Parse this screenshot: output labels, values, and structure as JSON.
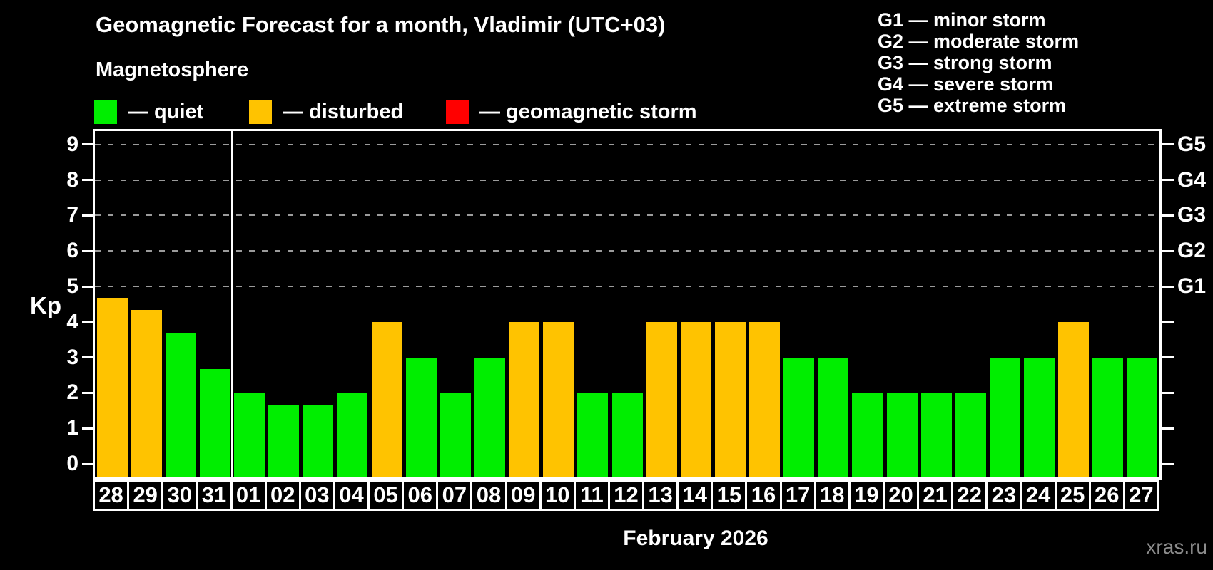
{
  "header": {
    "title": "Geomagnetic Forecast for a month, Vladimir (UTC+03)"
  },
  "magnetosphere_legend": {
    "title": "Magnetosphere",
    "items": [
      {
        "key": "quiet",
        "label": "— quiet",
        "color": "#00ee00"
      },
      {
        "key": "disturbed",
        "label": "— disturbed",
        "color": "#ffc300"
      },
      {
        "key": "storm",
        "label": "— geomagnetic storm",
        "color": "#ff0000"
      }
    ]
  },
  "storm_scale_legend": {
    "items": [
      "G1 — minor storm",
      "G2 — moderate storm",
      "G3 — strong storm",
      "G4 — severe storm",
      "G5 — extreme storm"
    ]
  },
  "chart_data": {
    "type": "bar",
    "title": "Geomagnetic Forecast for a month, Vladimir (UTC+03)",
    "xlabel": "February 2026",
    "ylabel": "Kp",
    "ylim": [
      0,
      9.4
    ],
    "grid": "dashed horizontal at Kp 5-9 only",
    "legend_position": "top",
    "yticks": [
      0,
      1,
      2,
      3,
      4,
      5,
      6,
      7,
      8,
      9
    ],
    "gridlines_at": [
      5,
      6,
      7,
      8,
      9
    ],
    "right_axis": [
      {
        "kp": 5,
        "label": "G1"
      },
      {
        "kp": 6,
        "label": "G2"
      },
      {
        "kp": 7,
        "label": "G3"
      },
      {
        "kp": 8,
        "label": "G4"
      },
      {
        "kp": 9,
        "label": "G5"
      }
    ],
    "month_separator_after_index": 3,
    "categories": [
      "28",
      "29",
      "30",
      "31",
      "01",
      "02",
      "03",
      "04",
      "05",
      "06",
      "07",
      "08",
      "09",
      "10",
      "11",
      "12",
      "13",
      "14",
      "15",
      "16",
      "17",
      "18",
      "19",
      "20",
      "21",
      "22",
      "23",
      "24",
      "25",
      "26",
      "27"
    ],
    "values": [
      4.67,
      4.33,
      3.67,
      2.67,
      2,
      1.67,
      1.67,
      2,
      4,
      3,
      2,
      3,
      4,
      4,
      2,
      2,
      4,
      4,
      4,
      4,
      3,
      3,
      2,
      2,
      2,
      2,
      3,
      3,
      4,
      3,
      3
    ],
    "states": [
      "disturbed",
      "disturbed",
      "quiet",
      "quiet",
      "quiet",
      "quiet",
      "quiet",
      "quiet",
      "disturbed",
      "quiet",
      "quiet",
      "quiet",
      "disturbed",
      "disturbed",
      "quiet",
      "quiet",
      "disturbed",
      "disturbed",
      "disturbed",
      "disturbed",
      "quiet",
      "quiet",
      "quiet",
      "quiet",
      "quiet",
      "quiet",
      "quiet",
      "quiet",
      "disturbed",
      "quiet",
      "quiet"
    ],
    "colors": {
      "quiet": "#00ee00",
      "disturbed": "#ffc300",
      "storm": "#ff0000",
      "gridline": "#9b9b9b"
    }
  },
  "footer": {
    "watermark": "xras.ru"
  }
}
